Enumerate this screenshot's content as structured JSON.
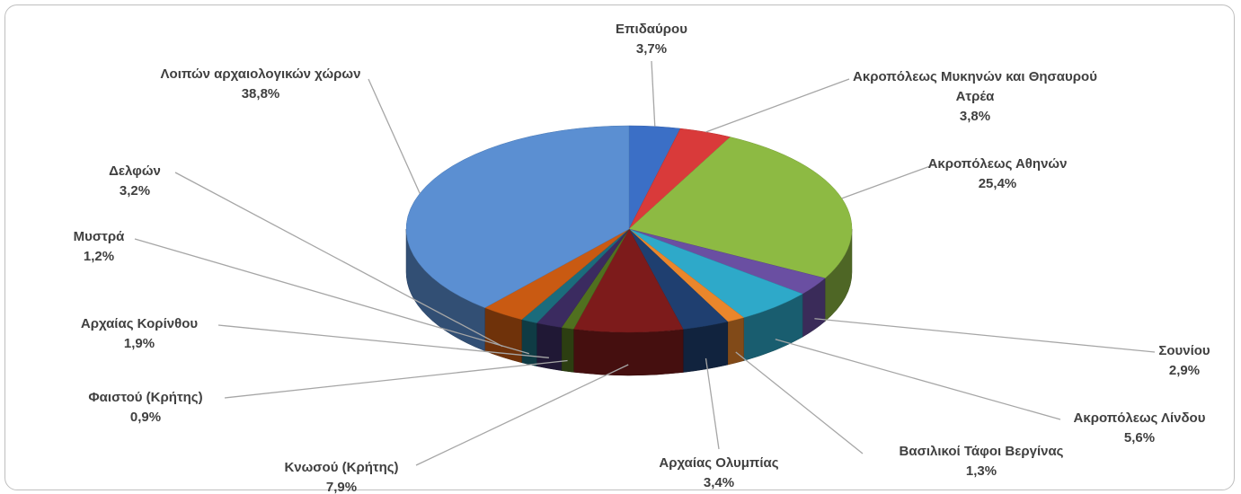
{
  "chart_data": {
    "type": "pie",
    "3d": true,
    "categories": [
      "Επιδαύρου",
      "Ακροπόλεως Μυκηνών και Θησαυρού Ατρέα",
      "Ακροπόλεως Αθηνών",
      "Σουνίου",
      "Ακροπόλεως Λίνδου",
      "Βασιλικοί Τάφοι Βεργίνας",
      "Αρχαίας Ολυμπίας",
      "Κνωσού (Κρήτης)",
      "Φαιστού (Κρήτης)",
      "Αρχαίας Κορίνθου",
      "Μυστρά",
      "Δελφών",
      "Λοιπών αρχαιολογικών χώρων"
    ],
    "values": [
      3.7,
      3.8,
      25.4,
      2.9,
      5.6,
      1.3,
      3.4,
      7.9,
      0.9,
      1.9,
      1.2,
      3.2,
      38.8
    ],
    "value_labels": [
      "3,7%",
      "3,8%",
      "25,4%",
      "2,9%",
      "5,6%",
      "1,3%",
      "3,4%",
      "7,9%",
      "0,9%",
      "1,9%",
      "1,2%",
      "3,2%",
      "38,8%"
    ],
    "colors": [
      "#3b6fc6",
      "#d93a3a",
      "#8dba43",
      "#6a4fa2",
      "#2ea9c9",
      "#ea862b",
      "#1f3f70",
      "#7d1b1b",
      "#50701f",
      "#3b2b60",
      "#1b6c7c",
      "#c95a12",
      "#5b8fd2"
    ]
  }
}
